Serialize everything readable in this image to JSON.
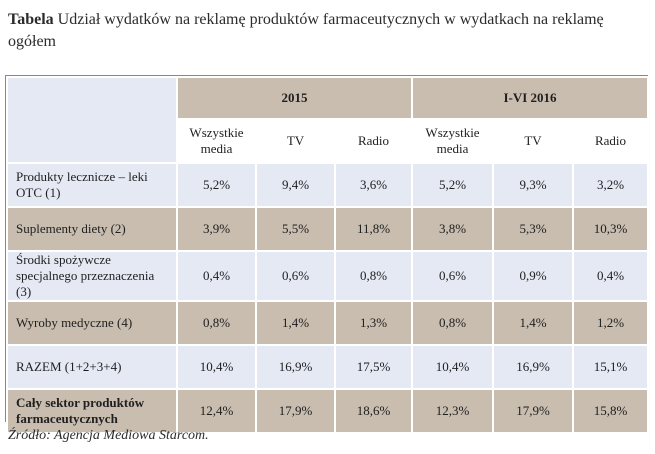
{
  "title": {
    "lead": "Tabela",
    "text": " Udział wydatków na reklamę produktów farmaceutycznych w wydatkach na reklamę ogółem"
  },
  "table": {
    "years": [
      "2015",
      "I-VI 2016"
    ],
    "subheaders": [
      "Wszystkie media",
      "TV",
      "Radio",
      "Wszystkie media",
      "TV",
      "Radio"
    ],
    "rows": [
      {
        "label": "Produkty lecznicze – leki OTC (1)",
        "values": [
          "5,2%",
          "9,4%",
          "3,6%",
          "5,2%",
          "9,3%",
          "3,2%"
        ]
      },
      {
        "label": "Suplementy diety (2)",
        "values": [
          "3,9%",
          "5,5%",
          "11,8%",
          "3,8%",
          "5,3%",
          "10,3%"
        ]
      },
      {
        "label": "Środki spożywcze specjalnego przeznaczenia (3)",
        "values": [
          "0,4%",
          "0,6%",
          "0,8%",
          "0,6%",
          "0,9%",
          "0,4%"
        ]
      },
      {
        "label": "Wyroby medyczne (4)",
        "values": [
          "0,8%",
          "1,4%",
          "1,3%",
          "0,8%",
          "1,4%",
          "1,2%"
        ]
      },
      {
        "label": "RAZEM (1+2+3+4)",
        "values": [
          "10,4%",
          "16,9%",
          "17,5%",
          "10,4%",
          "16,9%",
          "15,1%"
        ]
      },
      {
        "label": "Cały sektor produktów farmaceutycznych",
        "values": [
          "12,4%",
          "17,9%",
          "18,6%",
          "12,3%",
          "17,9%",
          "15,8%"
        ]
      }
    ]
  },
  "source": "Źródło: Agencja Mediowa Starcom.",
  "colors": {
    "header_tan": "#c8bdaf",
    "row_blue": "#e4e9f3",
    "border": "#8c8780"
  }
}
